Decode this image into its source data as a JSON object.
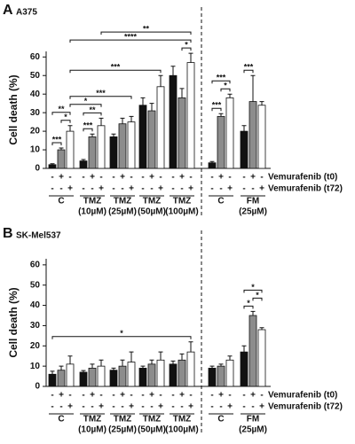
{
  "chart_data": [
    {
      "type": "bar",
      "panel": "A",
      "title": "A375",
      "ylabel": "Cell death (%)",
      "ylim": [
        0,
        63
      ],
      "yticks": [
        0,
        10,
        20,
        30,
        40,
        50,
        60
      ],
      "categories": [
        "C",
        "TMZ",
        "TMZ",
        "TMZ",
        "TMZ",
        "C",
        "FM"
      ],
      "category_sublabels": [
        null,
        "(10µM)",
        "(25µM)",
        "(50µM)",
        "(100µM)",
        null,
        "(25µM)"
      ],
      "conditions": [
        {
          "label": "Vemurafenib (t0)",
          "signs": [
            "-",
            "+",
            "-"
          ]
        },
        {
          "label": "Vemurafenib (t72)",
          "signs": [
            "-",
            "-",
            "+"
          ]
        }
      ],
      "series": [
        {
          "color": "#111111",
          "values": [
            2,
            4,
            17,
            34,
            50,
            3,
            20
          ],
          "errors": [
            0.5,
            0.8,
            1.5,
            4,
            5,
            0.7,
            3
          ]
        },
        {
          "color": "#8c8c8c",
          "values": [
            10,
            17,
            24,
            31,
            38,
            28,
            36
          ],
          "errors": [
            1,
            1.5,
            3,
            4,
            5,
            1.5,
            14
          ]
        },
        {
          "color": "#ffffff",
          "values": [
            20,
            23,
            25,
            44,
            57,
            38,
            34
          ],
          "errors": [
            3,
            4,
            3,
            6,
            5,
            2,
            2
          ]
        }
      ],
      "annotations": [
        {
          "label": "***",
          "from": [
            0,
            0
          ],
          "to": [
            0,
            1
          ]
        },
        {
          "label": "*",
          "from": [
            0,
            1
          ],
          "to": [
            0,
            2
          ]
        },
        {
          "label": "**",
          "from": [
            0,
            0
          ],
          "to": [
            0,
            2
          ]
        },
        {
          "label": "***",
          "from": [
            1,
            0
          ],
          "to": [
            1,
            1
          ]
        },
        {
          "label": "**",
          "from": [
            1,
            0
          ],
          "to": [
            1,
            2
          ]
        },
        {
          "label": "*",
          "from": [
            4,
            1
          ],
          "to": [
            4,
            2
          ]
        },
        {
          "label": "*",
          "from": [
            0,
            2
          ],
          "to": [
            1,
            2
          ]
        },
        {
          "label": "***",
          "from": [
            0,
            2
          ],
          "to": [
            2,
            2
          ]
        },
        {
          "label": "***",
          "from": [
            0,
            2
          ],
          "to": [
            3,
            2
          ]
        },
        {
          "label": "****",
          "from": [
            0,
            2
          ],
          "to": [
            4,
            2
          ]
        },
        {
          "label": "**",
          "from": [
            1,
            2
          ],
          "to": [
            4,
            2
          ]
        },
        {
          "label": "***",
          "from": [
            5,
            0
          ],
          "to": [
            5,
            1
          ]
        },
        {
          "label": "*",
          "from": [
            5,
            1
          ],
          "to": [
            5,
            2
          ]
        },
        {
          "label": "***",
          "from": [
            5,
            0
          ],
          "to": [
            5,
            2
          ]
        },
        {
          "label": "***",
          "from": [
            6,
            0
          ],
          "to": [
            6,
            1
          ]
        }
      ]
    },
    {
      "type": "bar",
      "panel": "B",
      "title": "SK-Mel537",
      "ylabel": "Cell death (%)",
      "ylim": [
        0,
        63
      ],
      "yticks": [
        0,
        10,
        20,
        30,
        40,
        50,
        60
      ],
      "categories": [
        "C",
        "TMZ",
        "TMZ",
        "TMZ",
        "TMZ",
        "C",
        "FM"
      ],
      "category_sublabels": [
        null,
        "(10µM)",
        "(25µM)",
        "(50µM)",
        "(100µM)",
        null,
        "(25µM)"
      ],
      "conditions": [
        {
          "label": "Vemurafenib (t0)",
          "signs": [
            "-",
            "+",
            "-"
          ]
        },
        {
          "label": "Vemurafenib (t72)",
          "signs": [
            "-",
            "-",
            "+"
          ]
        }
      ],
      "series": [
        {
          "color": "#111111",
          "values": [
            6,
            7,
            8,
            9,
            11,
            9,
            17
          ],
          "errors": [
            1.5,
            0.8,
            1,
            1,
            1.5,
            1,
            3
          ]
        },
        {
          "color": "#8c8c8c",
          "values": [
            8,
            9,
            10,
            11,
            13,
            10,
            35
          ],
          "errors": [
            2,
            2,
            3,
            2,
            3,
            1,
            2
          ]
        },
        {
          "color": "#ffffff",
          "values": [
            11,
            10,
            12,
            13,
            17,
            13,
            28
          ],
          "errors": [
            4,
            3,
            5,
            4,
            5,
            2,
            1
          ]
        }
      ],
      "annotations": [
        {
          "label": "*",
          "from": [
            6,
            0
          ],
          "to": [
            6,
            1
          ]
        },
        {
          "label": "*",
          "from": [
            6,
            1
          ],
          "to": [
            6,
            2
          ]
        },
        {
          "label": "*",
          "from": [
            6,
            0
          ],
          "to": [
            6,
            2
          ]
        },
        {
          "label": "*",
          "from": [
            0,
            0
          ],
          "to": [
            4,
            2
          ]
        }
      ]
    }
  ]
}
